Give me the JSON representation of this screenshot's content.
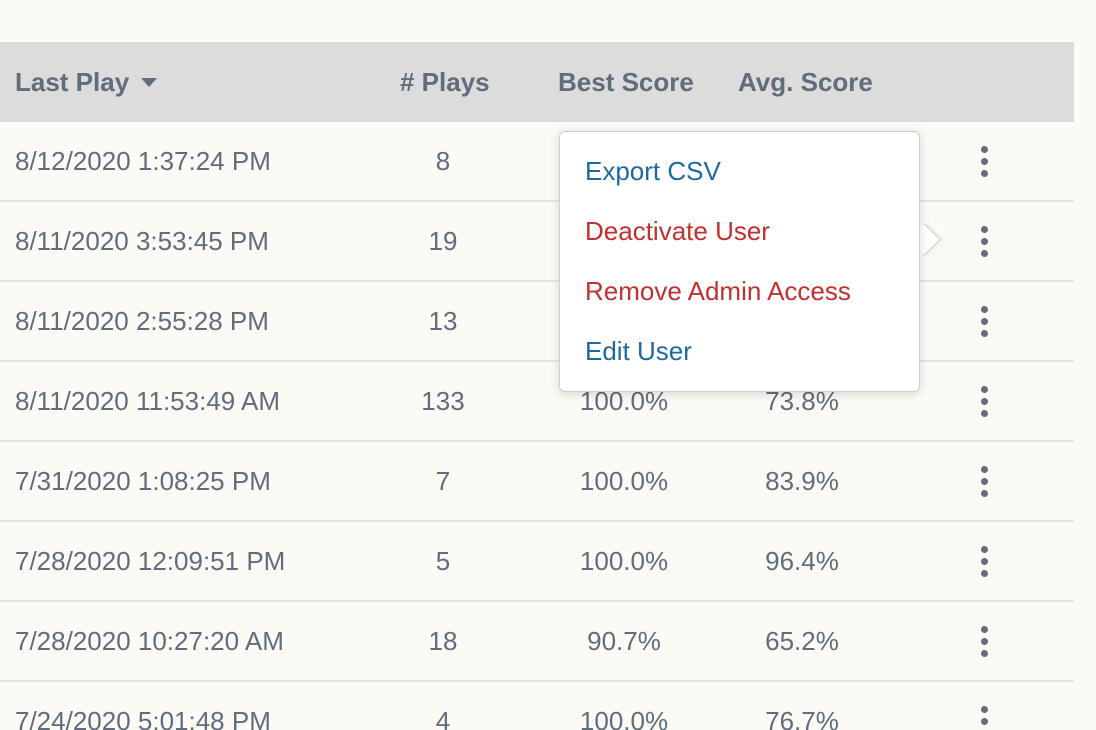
{
  "header": {
    "last_play": "Last Play",
    "plays": "# Plays",
    "best_score": "Best Score",
    "avg_score": "Avg. Score"
  },
  "rows": [
    {
      "date": "8/12/2020 1:37:24 PM",
      "plays": "8",
      "best": "",
      "avg": ""
    },
    {
      "date": "8/11/2020 3:53:45 PM",
      "plays": "19",
      "best": "",
      "avg": ""
    },
    {
      "date": "8/11/2020 2:55:28 PM",
      "plays": "13",
      "best": "",
      "avg": ""
    },
    {
      "date": "8/11/2020 11:53:49 AM",
      "plays": "133",
      "best": "100.0%",
      "avg": "73.8%"
    },
    {
      "date": "7/31/2020 1:08:25 PM",
      "plays": "7",
      "best": "100.0%",
      "avg": "83.9%"
    },
    {
      "date": "7/28/2020 12:09:51 PM",
      "plays": "5",
      "best": "100.0%",
      "avg": "96.4%"
    },
    {
      "date": "7/28/2020 10:27:20 AM",
      "plays": "18",
      "best": "90.7%",
      "avg": "65.2%"
    },
    {
      "date": "7/24/2020 5:01:48 PM",
      "plays": "4",
      "best": "100.0%",
      "avg": "76.7%"
    }
  ],
  "menu": {
    "export_csv": "Export CSV",
    "deactivate_user": "Deactivate User",
    "remove_admin_access": "Remove Admin Access",
    "edit_user": "Edit User"
  },
  "colors": {
    "background": "#fbfaf5",
    "header_bg": "#dcdcdc",
    "text": "#5f6d7c",
    "link_blue": "#1e6a9e",
    "danger_red": "#c0312f"
  },
  "icons": {
    "sort": "caret-down-icon",
    "row_actions": "more-vertical-icon"
  }
}
